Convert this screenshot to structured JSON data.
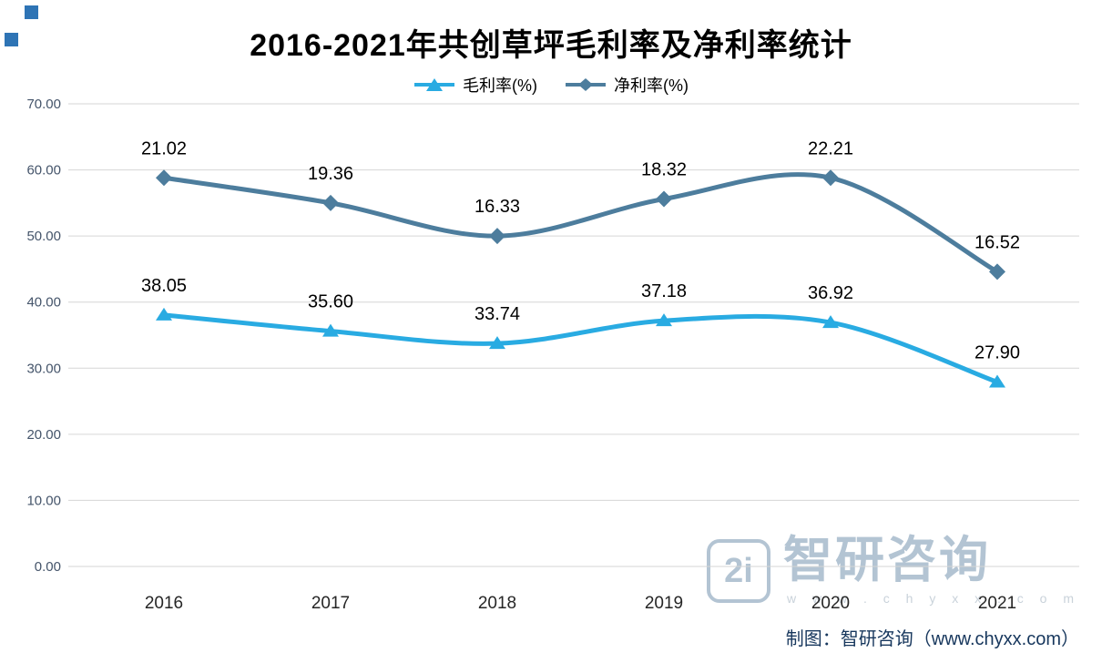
{
  "chart_data": {
    "type": "line",
    "title": "2016-2021年共创草坪毛利率及净利率统计",
    "categories": [
      "2016",
      "2017",
      "2018",
      "2019",
      "2020",
      "2021"
    ],
    "series": [
      {
        "name": "毛利率(%)",
        "color": "#29abe2",
        "marker": "triangle",
        "values": [
          38.05,
          35.6,
          33.74,
          37.18,
          36.92,
          27.9
        ],
        "labels": [
          "38.05",
          "35.60",
          "33.74",
          "37.18",
          "36.92",
          "27.90"
        ]
      },
      {
        "name": "净利率(%)",
        "color": "#4d7d9d",
        "marker": "diamond",
        "values": [
          21.02,
          19.36,
          16.33,
          18.32,
          22.21,
          16.52
        ],
        "labels": [
          "21.02",
          "19.36",
          "16.33",
          "18.32",
          "22.21",
          "16.52"
        ],
        "plot_values_left_axis": [
          58.8,
          55.0,
          50.0,
          55.6,
          58.8,
          44.6
        ],
        "note": "line drawn against a hidden secondary scale; plot_values_left_axis are its visual positions read off the left axis"
      }
    ],
    "y_axis": {
      "min": 0,
      "max": 70,
      "step": 10,
      "tick_labels": [
        "0.00",
        "10.00",
        "20.00",
        "30.00",
        "40.00",
        "50.00",
        "60.00",
        "70.00"
      ]
    },
    "grid": true,
    "legend_position": "top"
  },
  "colors": {
    "grid": "#d6d6d6",
    "axis_text": "#44546a",
    "x_text": "#262626",
    "label_text": "#000000",
    "decor": "#2e74b5",
    "title": "#000000",
    "watermark": "#b3c4d3",
    "watermark_url": "#c9d2da",
    "credit": "#17375d"
  },
  "watermark": {
    "brand": "智研咨询",
    "logo_glyph": "2i",
    "url": "w w w . c h y x x . c o m"
  },
  "footer": {
    "credit": "制图：智研咨询（www.chyxx.com）"
  }
}
